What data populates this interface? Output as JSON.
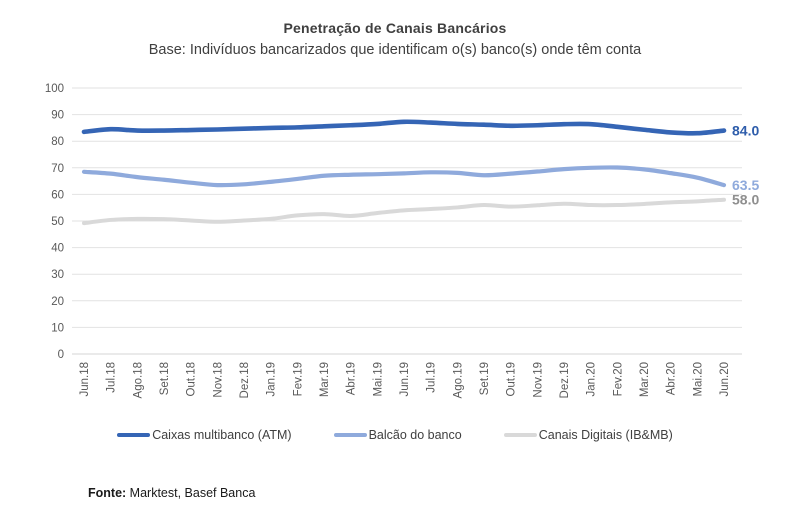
{
  "title": "Penetração de Canais Bancários",
  "subtitle": "Base: Indivíduos bancarizados que identificam o(s) banco(s) onde têm conta",
  "footer": {
    "label": "Fonte:",
    "text": " Marktest, Basef Banca"
  },
  "chart_data": {
    "type": "line",
    "title": "Penetração de Canais Bancários",
    "subtitle": "Base: Indivíduos bancarizados que identificam o(s) banco(s) onde têm conta",
    "categories": [
      "Jun.18",
      "Jul.18",
      "Ago.18",
      "Set.18",
      "Out.18",
      "Nov.18",
      "Dez.18",
      "Jan.19",
      "Fev.19",
      "Mar.19",
      "Abr.19",
      "Mai.19",
      "Jun.19",
      "Jul.19",
      "Ago.19",
      "Set.19",
      "Out.19",
      "Nov.19",
      "Dez.19",
      "Jan.20",
      "Fev.20",
      "Mar.20",
      "Abr.20",
      "Mai.20",
      "Jun.20"
    ],
    "series": [
      {
        "name": "Caixas multibanco (ATM)",
        "color": "#3565b5",
        "label_color": "#2e5dab",
        "stroke_width": 4.6,
        "end_label": "84.0",
        "values": [
          83.5,
          84.5,
          84.0,
          84.0,
          84.2,
          84.4,
          84.7,
          85.0,
          85.2,
          85.6,
          86.0,
          86.5,
          87.3,
          87.0,
          86.5,
          86.2,
          85.8,
          86.0,
          86.4,
          86.4,
          85.4,
          84.3,
          83.3,
          83.0,
          84.0
        ]
      },
      {
        "name": "Balcão do banco",
        "color": "#8faadc",
        "label_color": "#8faadc",
        "stroke_width": 4.2,
        "end_label": "63.5",
        "values": [
          68.5,
          67.8,
          66.5,
          65.5,
          64.4,
          63.5,
          63.8,
          64.7,
          65.8,
          67.0,
          67.4,
          67.6,
          67.9,
          68.3,
          68.1,
          67.2,
          67.8,
          68.6,
          69.5,
          70.0,
          70.1,
          69.4,
          68.0,
          66.3,
          63.5
        ]
      },
      {
        "name": "Canais Digitais (IB&MB)",
        "color": "#d9d9d9",
        "label_color": "#8f8f8f",
        "stroke_width": 4.0,
        "end_label": "58.0",
        "values": [
          49.2,
          50.4,
          50.8,
          50.7,
          50.2,
          49.7,
          50.2,
          50.8,
          52.1,
          52.6,
          51.9,
          53.0,
          54.0,
          54.5,
          55.1,
          56.0,
          55.4,
          55.9,
          56.5,
          56.0,
          56.0,
          56.4,
          57.0,
          57.4,
          58.0
        ]
      }
    ],
    "ylim": [
      0,
      100
    ],
    "ytick_step": 10,
    "ytick_labels": [
      "0",
      "10",
      "20",
      "30",
      "40",
      "50",
      "60",
      "70",
      "80",
      "90",
      "100"
    ],
    "grid": true,
    "legend_position": "bottom",
    "axis_text_color": "#595959",
    "grid_color": "#e2e2e2",
    "zero_line_color": "#d6d6d6"
  }
}
